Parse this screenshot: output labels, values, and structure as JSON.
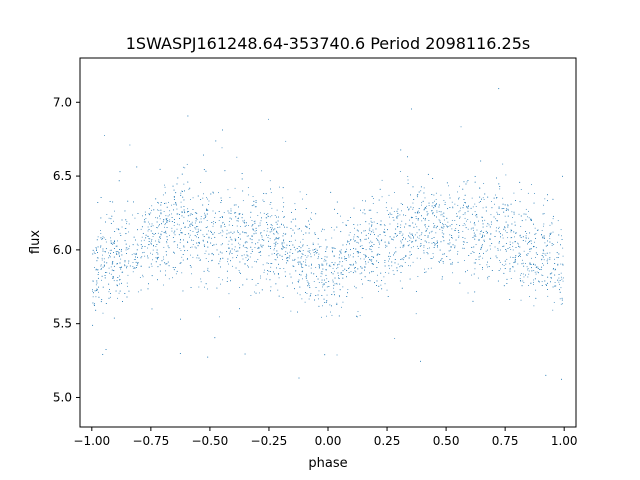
{
  "chart_data": {
    "type": "scatter",
    "title": "1SWASPJ161248.64-353740.6 Period 2098116.25s",
    "xlabel": "phase",
    "ylabel": "flux",
    "xlim": [
      -1.05,
      1.05
    ],
    "ylim": [
      4.8,
      7.3
    ],
    "xticks": [
      -1.0,
      -0.75,
      -0.5,
      -0.25,
      0.0,
      0.25,
      0.5,
      0.75,
      1.0
    ],
    "xtick_labels": [
      "−1.00",
      "−0.75",
      "−0.50",
      "−0.25",
      "0.00",
      "0.25",
      "0.50",
      "0.75",
      "1.00"
    ],
    "yticks": [
      5.0,
      5.5,
      6.0,
      6.5,
      7.0
    ],
    "ytick_labels": [
      "5.0",
      "5.5",
      "6.0",
      "6.5",
      "7.0"
    ],
    "grid": false,
    "marker_color": "#1f77b4",
    "series": [
      {
        "x_range": [
          -1.0,
          1.0
        ],
        "pattern": "phase-folded light curve, mirrored about phase 0",
        "x": [
          -1.0,
          -0.9,
          -0.8,
          -0.7,
          -0.6,
          -0.5,
          -0.4,
          -0.3,
          -0.2,
          -0.1,
          0.0,
          0.1,
          0.2,
          0.3,
          0.4,
          0.5,
          0.6,
          0.7,
          0.8,
          0.9,
          1.0
        ],
        "y": [
          5.85,
          5.95,
          6.0,
          6.15,
          6.15,
          6.1,
          6.1,
          6.05,
          6.05,
          5.95,
          5.85,
          5.95,
          6.0,
          6.1,
          6.15,
          6.15,
          6.1,
          6.1,
          6.05,
          6.0,
          5.85
        ],
        "scatter_std": 0.16
      }
    ]
  }
}
